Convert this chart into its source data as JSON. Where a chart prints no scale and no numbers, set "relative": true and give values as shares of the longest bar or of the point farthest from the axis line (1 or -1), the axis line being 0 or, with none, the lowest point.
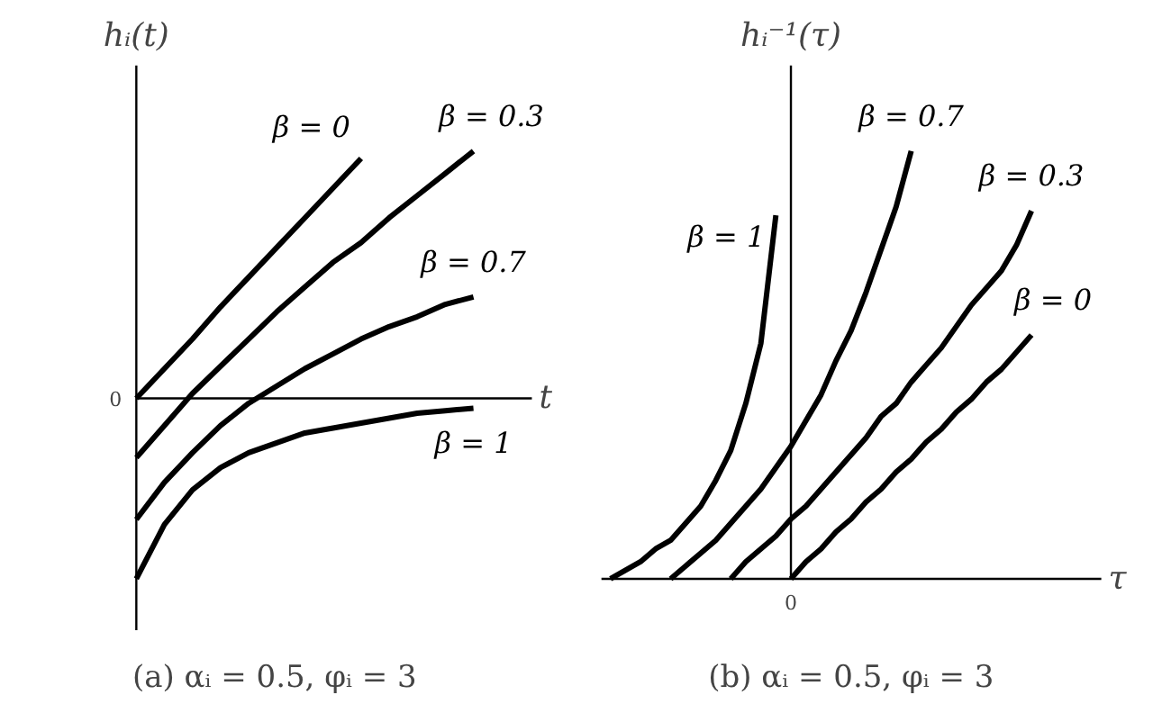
{
  "chart_data": [
    {
      "type": "line",
      "title": "(a) αᵢ = 0.5,    φᵢ = 3",
      "xlabel": "t",
      "ylabel": "hᵢ(t)",
      "relative": true,
      "legend": false,
      "line_style": "solid",
      "marker": "none",
      "annotations": [
        "0"
      ],
      "categories": [
        null,
        null,
        null,
        null,
        null,
        null,
        null,
        null,
        null,
        null,
        null,
        null,
        null
      ],
      "series": [
        {
          "name": "β = 0",
          "color": "#000000",
          "values": [
            0,
            0.12,
            0.24,
            0.37,
            0.49,
            0.61,
            0.73,
            0.85,
            0.97,
            null,
            null,
            null,
            null
          ]
        },
        {
          "name": "β = 0.3",
          "color": "#000000",
          "values": [
            -0.24,
            -0.11,
            0.02,
            0.13,
            0.24,
            0.35,
            0.45,
            0.55,
            0.63,
            0.73,
            0.82,
            0.91,
            1.0
          ]
        },
        {
          "name": "β = 0.7",
          "color": "#000000",
          "values": [
            -0.49,
            -0.34,
            -0.22,
            -0.11,
            -0.02,
            0.05,
            0.12,
            0.18,
            0.24,
            0.29,
            0.33,
            0.38,
            0.41
          ]
        },
        {
          "name": "β = 1",
          "color": "#000000",
          "values": [
            -0.73,
            -0.51,
            -0.37,
            -0.28,
            -0.22,
            -0.18,
            -0.14,
            -0.12,
            -0.1,
            -0.08,
            -0.06,
            -0.05,
            -0.04
          ]
        }
      ]
    },
    {
      "type": "line",
      "title": "(b) αᵢ = 0.5,    φᵢ = 3",
      "xlabel": "τ",
      "ylabel": "hᵢ⁻¹(τ)",
      "relative": true,
      "legend": false,
      "line_style": "solid",
      "marker": "none",
      "annotations": [
        "0"
      ],
      "categories": [
        null,
        null,
        null,
        null,
        null,
        null,
        null,
        null,
        null,
        null,
        null,
        null,
        null,
        null,
        null,
        null,
        null,
        null,
        null,
        null,
        null,
        null,
        null,
        null,
        null,
        null,
        null,
        null,
        null
      ],
      "series": [
        {
          "name": "β = 1",
          "color": "#000000",
          "values": [
            0,
            0.02,
            0.04,
            0.07,
            0.09,
            0.13,
            0.17,
            0.23,
            0.3,
            0.41,
            0.55,
            0.85,
            null,
            null,
            null,
            null,
            null,
            null,
            null,
            null,
            null,
            null,
            null,
            null,
            null,
            null,
            null,
            null,
            null
          ]
        },
        {
          "name": "β = 0.7",
          "color": "#000000",
          "values": [
            null,
            null,
            null,
            null,
            0,
            0.03,
            0.06,
            0.09,
            0.13,
            0.17,
            0.21,
            0.26,
            0.31,
            0.37,
            0.43,
            0.51,
            0.58,
            0.67,
            0.77,
            0.87,
            1.0,
            null,
            null,
            null,
            null,
            null,
            null,
            null,
            null
          ]
        },
        {
          "name": "β = 0.3",
          "color": "#000000",
          "values": [
            null,
            null,
            null,
            null,
            null,
            null,
            null,
            null,
            0,
            0.04,
            0.07,
            0.1,
            0.14,
            0.17,
            0.21,
            0.25,
            0.29,
            0.33,
            0.38,
            0.41,
            0.46,
            0.5,
            0.54,
            0.59,
            0.64,
            0.68,
            0.72,
            0.78,
            0.86
          ]
        },
        {
          "name": "β = 0",
          "color": "#000000",
          "values": [
            null,
            null,
            null,
            null,
            null,
            null,
            null,
            null,
            null,
            null,
            null,
            null,
            0,
            0.04,
            0.07,
            0.11,
            0.14,
            0.18,
            0.21,
            0.25,
            0.28,
            0.32,
            0.35,
            0.39,
            0.42,
            0.46,
            0.49,
            0.53,
            0.57
          ]
        }
      ]
    }
  ]
}
